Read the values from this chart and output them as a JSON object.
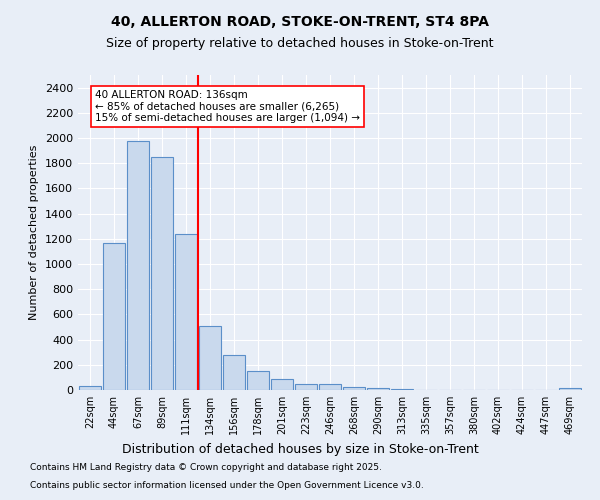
{
  "title1": "40, ALLERTON ROAD, STOKE-ON-TRENT, ST4 8PA",
  "title2": "Size of property relative to detached houses in Stoke-on-Trent",
  "xlabel": "Distribution of detached houses by size in Stoke-on-Trent",
  "ylabel": "Number of detached properties",
  "categories": [
    "22sqm",
    "44sqm",
    "67sqm",
    "89sqm",
    "111sqm",
    "134sqm",
    "156sqm",
    "178sqm",
    "201sqm",
    "223sqm",
    "246sqm",
    "268sqm",
    "290sqm",
    "313sqm",
    "335sqm",
    "357sqm",
    "380sqm",
    "402sqm",
    "424sqm",
    "447sqm",
    "469sqm"
  ],
  "values": [
    28,
    1170,
    1980,
    1850,
    1240,
    510,
    275,
    150,
    90,
    45,
    45,
    22,
    15,
    5,
    3,
    3,
    2,
    2,
    1,
    1,
    18
  ],
  "bar_color": "#c9d9ed",
  "bar_edge_color": "#5b8fc9",
  "vline_x": 4.5,
  "vline_color": "red",
  "annotation_text": "40 ALLERTON ROAD: 136sqm\n← 85% of detached houses are smaller (6,265)\n15% of semi-detached houses are larger (1,094) →",
  "annotation_box_color": "white",
  "annotation_box_edge": "red",
  "bg_color": "#e8eef7",
  "grid_color": "white",
  "ylim": [
    0,
    2500
  ],
  "yticks": [
    0,
    200,
    400,
    600,
    800,
    1000,
    1200,
    1400,
    1600,
    1800,
    2000,
    2200,
    2400
  ],
  "footnote1": "Contains HM Land Registry data © Crown copyright and database right 2025.",
  "footnote2": "Contains public sector information licensed under the Open Government Licence v3.0."
}
